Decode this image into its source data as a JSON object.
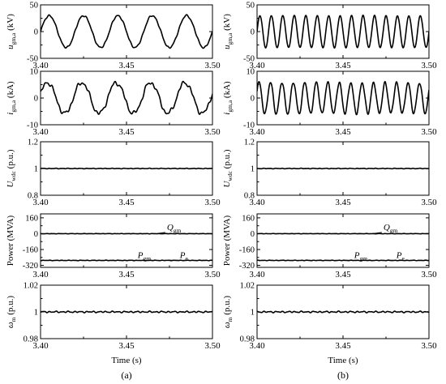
{
  "chart_data": [
    {
      "id": "a1",
      "type": "line",
      "ylabel": {
        "main": "u",
        "sub": "gm,a",
        "unit": " (kV)"
      },
      "xlim": [
        3.4,
        3.5
      ],
      "ylim": [
        -50,
        50
      ],
      "yticks": [
        -50,
        0,
        50
      ],
      "xticks": [
        3.4,
        3.45,
        3.5
      ],
      "series": [
        {
          "kind": "sine",
          "amplitude": 30,
          "frequency_hz": 50,
          "phase": 0,
          "ripple": 2,
          "harmonic": 0
        }
      ]
    },
    {
      "id": "a2",
      "type": "line",
      "ylabel": {
        "main": "i",
        "sub": "gm,a",
        "unit": " (kA)"
      },
      "xlim": [
        3.4,
        3.5
      ],
      "ylim": [
        -10,
        10
      ],
      "yticks": [
        -10,
        0,
        10
      ],
      "xticks": [
        3.4,
        3.45,
        3.5
      ],
      "series": [
        {
          "kind": "sine",
          "amplitude": 5.8,
          "frequency_hz": 50,
          "phase": 0.3,
          "ripple": 0.8,
          "harmonic": 0.4
        }
      ]
    },
    {
      "id": "a3",
      "type": "line",
      "ylabel": {
        "main": "U",
        "sub": "wdc",
        "unit": " (p.u.)"
      },
      "xlim": [
        3.4,
        3.5
      ],
      "ylim": [
        0.8,
        1.2
      ],
      "yticks": [
        0.8,
        1.0,
        1.2
      ],
      "xticks": [
        3.4,
        3.45,
        3.5
      ],
      "series": [
        {
          "kind": "constant",
          "value": 1.0,
          "noise": 0.003
        }
      ]
    },
    {
      "id": "a4",
      "type": "line",
      "ylabel": {
        "main": "Power (MVA)",
        "sub": "",
        "unit": ""
      },
      "xlim": [
        3.4,
        3.5
      ],
      "ylim": [
        -340,
        200
      ],
      "yticks": [
        -320,
        -160,
        0,
        160
      ],
      "xticks": [
        3.4,
        3.45,
        3.5
      ],
      "series": [
        {
          "name": "Q_gm",
          "kind": "constant",
          "value": 0,
          "noise": 2
        },
        {
          "name": "P_gm / P_e",
          "kind": "constant",
          "value": -270,
          "noise": 3
        }
      ],
      "annotations": [
        {
          "main": "Q",
          "sub": "gm",
          "x": 3.4735,
          "y": 38,
          "ax": 3.468,
          "ay": 2
        },
        {
          "main": "P",
          "sub": "gm",
          "x": 3.4565,
          "y": -245,
          "ax": 3.452,
          "ay": -268
        },
        {
          "main": "P",
          "sub": "e",
          "x": 3.481,
          "y": -245,
          "ax": 3.4755,
          "ay": -268
        }
      ]
    },
    {
      "id": "a5",
      "type": "line",
      "ylabel": {
        "main": "ω",
        "sub": "m",
        "unit": " (p.u.)"
      },
      "xlim": [
        3.4,
        3.5
      ],
      "ylim": [
        0.98,
        1.02
      ],
      "yticks": [
        0.98,
        1.0,
        1.02
      ],
      "xticks": [
        3.4,
        3.45,
        3.5
      ],
      "series": [
        {
          "kind": "constant",
          "value": 1.0,
          "noise": 0.0007
        }
      ]
    },
    {
      "id": "b1",
      "type": "line",
      "ylabel": {
        "main": "u",
        "sub": "gm,a",
        "unit": " (kV)"
      },
      "xlim": [
        3.4,
        3.5
      ],
      "ylim": [
        -50,
        50
      ],
      "yticks": [
        -50,
        0,
        50
      ],
      "xticks": [
        3.4,
        3.45,
        3.5
      ],
      "series": [
        {
          "kind": "sine",
          "amplitude": 30,
          "frequency_hz": 150,
          "phase": 0,
          "ripple": 1,
          "harmonic": 0
        }
      ]
    },
    {
      "id": "b2",
      "type": "line",
      "ylabel": {
        "main": "i",
        "sub": "gm,a",
        "unit": " (kA)"
      },
      "xlim": [
        3.4,
        3.5
      ],
      "ylim": [
        -10,
        10
      ],
      "yticks": [
        -10,
        0,
        10
      ],
      "xticks": [
        3.4,
        3.45,
        3.5
      ],
      "series": [
        {
          "kind": "sine",
          "amplitude": 5.8,
          "frequency_hz": 150,
          "phase": 0.5,
          "ripple": 0.6,
          "harmonic": 0
        }
      ]
    },
    {
      "id": "b3",
      "type": "line",
      "ylabel": {
        "main": "U",
        "sub": "wdc",
        "unit": " (p.u.)"
      },
      "xlim": [
        3.4,
        3.5
      ],
      "ylim": [
        0.8,
        1.2
      ],
      "yticks": [
        0.8,
        1.0,
        1.2
      ],
      "xticks": [
        3.4,
        3.45,
        3.5
      ],
      "series": [
        {
          "kind": "constant",
          "value": 1.0,
          "noise": 0.003
        }
      ]
    },
    {
      "id": "b4",
      "type": "line",
      "ylabel": {
        "main": "Power (MVA)",
        "sub": "",
        "unit": ""
      },
      "xlim": [
        3.4,
        3.5
      ],
      "ylim": [
        -340,
        200
      ],
      "yticks": [
        -320,
        -160,
        0,
        160
      ],
      "xticks": [
        3.4,
        3.45,
        3.5
      ],
      "series": [
        {
          "name": "Q_gm",
          "kind": "constant",
          "value": 0,
          "noise": 2
        },
        {
          "name": "P_gm / P_e",
          "kind": "constant",
          "value": -270,
          "noise": 3
        }
      ],
      "annotations": [
        {
          "main": "Q",
          "sub": "gm",
          "x": 3.4735,
          "y": 38,
          "ax": 3.468,
          "ay": 2
        },
        {
          "main": "P",
          "sub": "gm",
          "x": 3.4565,
          "y": -245,
          "ax": 3.452,
          "ay": -268
        },
        {
          "main": "P",
          "sub": "e",
          "x": 3.481,
          "y": -245,
          "ax": 3.4755,
          "ay": -268
        }
      ]
    },
    {
      "id": "b5",
      "type": "line",
      "ylabel": {
        "main": "ω",
        "sub": "m",
        "unit": " (p.u.)"
      },
      "xlim": [
        3.4,
        3.5
      ],
      "ylim": [
        0.98,
        1.02
      ],
      "yticks": [
        0.98,
        1.0,
        1.02
      ],
      "xticks": [
        3.4,
        3.45,
        3.5
      ],
      "series": [
        {
          "kind": "constant",
          "value": 1.0,
          "noise": 0.0007
        }
      ]
    }
  ],
  "xlabel": "Time (s)",
  "captions": [
    "(a)",
    "(b)"
  ]
}
